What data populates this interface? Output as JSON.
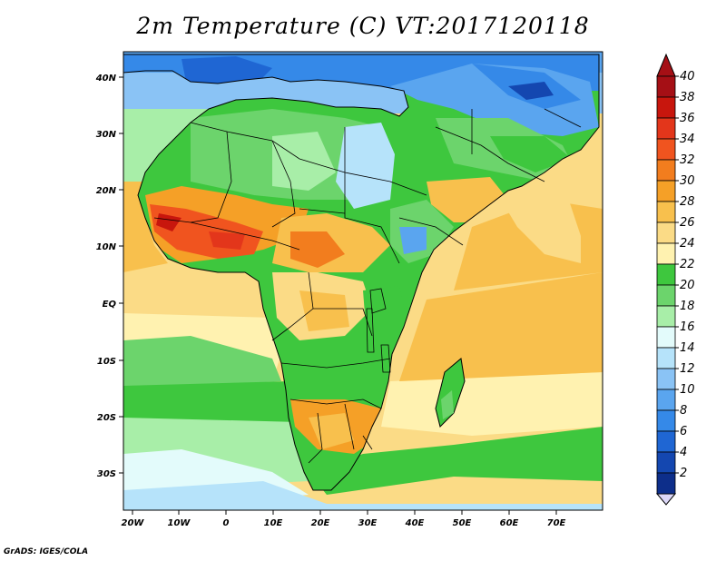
{
  "title": "2m Temperature (C) VT:2017120118",
  "credit": "GrADS: IGES/COLA",
  "map": {
    "region": "Africa",
    "variable": "2m Temperature",
    "units": "C",
    "lon_ticks": [
      "20W",
      "10W",
      "0",
      "10E",
      "20E",
      "30E",
      "40E",
      "50E",
      "60E",
      "70E"
    ],
    "lat_ticks": [
      "40N",
      "30N",
      "20N",
      "10N",
      "EQ",
      "10S",
      "20S",
      "30S"
    ]
  },
  "colorbar": {
    "labels": [
      "40",
      "38",
      "36",
      "34",
      "32",
      "30",
      "28",
      "26",
      "24",
      "22",
      "20",
      "18",
      "16",
      "14",
      "12",
      "10",
      "8",
      "6",
      "4",
      "2"
    ],
    "colors": [
      "#a50f15",
      "#c8160d",
      "#e3361b",
      "#f0541f",
      "#f27d1e",
      "#f5a027",
      "#f8c04d",
      "#fbdb86",
      "#fff2b0",
      "#3ec73e",
      "#6cd46c",
      "#a8eea8",
      "#e3fbfb",
      "#b6e3fa",
      "#8ac3f5",
      "#5aa5ef",
      "#3589e8",
      "#1f66d3",
      "#1447b0",
      "#0d2e8a"
    ],
    "over_color": "#a50f15",
    "under_color": "#ddd8f8"
  }
}
